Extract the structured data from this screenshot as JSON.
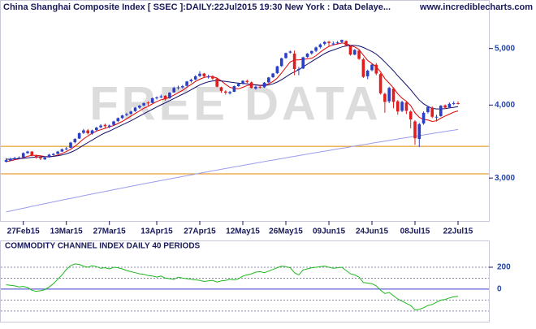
{
  "chart_data": [
    {
      "type": "candlestick",
      "title": "China Shanghai Composite Index [ SSEC ]:DAILY:22Jul2015 19:30 New York : Data Delaye...",
      "source": "www.incrediblecharts.com",
      "watermark": "FREE DATA",
      "log": true,
      "ylim": [
        2533,
        6053
      ],
      "yticks": [
        {
          "value": 5000,
          "label": "5,000"
        },
        {
          "value": 4000,
          "label": "4,000"
        },
        {
          "value": 3000,
          "label": "3,000"
        }
      ],
      "up_color": "#2a3fc8",
      "down_color": "#dd1f1f",
      "hlines": [
        3400,
        3050
      ],
      "hline_color": "#e08a00",
      "categories": [
        null,
        null,
        null,
        null,
        "27Feb15",
        null,
        null,
        null,
        null,
        null,
        null,
        null,
        null,
        null,
        "13Mar15",
        null,
        null,
        null,
        null,
        null,
        null,
        null,
        null,
        null,
        "27Mar15",
        null,
        null,
        null,
        null,
        null,
        null,
        null,
        null,
        null,
        null,
        "13Apr15",
        null,
        null,
        null,
        null,
        null,
        null,
        null,
        null,
        null,
        "27Apr15",
        null,
        null,
        null,
        null,
        null,
        null,
        null,
        null,
        null,
        "12May15",
        null,
        null,
        null,
        null,
        null,
        null,
        null,
        null,
        null,
        "26May15",
        null,
        null,
        null,
        null,
        null,
        null,
        null,
        null,
        null,
        "09Jun15",
        null,
        null,
        null,
        null,
        null,
        null,
        null,
        null,
        null,
        "24Jun15",
        null,
        null,
        null,
        null,
        null,
        null,
        null,
        null,
        null,
        "08Jul15",
        null,
        null,
        null,
        null,
        null,
        null,
        null,
        null,
        null,
        "22Jul15"
      ],
      "ohlc": [
        [
          3200,
          3245,
          3190,
          3220
        ],
        [
          3215,
          3250,
          3205,
          3235
        ],
        [
          3240,
          3262,
          3225,
          3245
        ],
        [
          3245,
          3268,
          3230,
          3250
        ],
        [
          3255,
          3320,
          3250,
          3310
        ],
        [
          3310,
          3340,
          3300,
          3330
        ],
        [
          3330,
          3335,
          3270,
          3280
        ],
        [
          3275,
          3290,
          3240,
          3250
        ],
        [
          3255,
          3265,
          3220,
          3240
        ],
        [
          3230,
          3260,
          3220,
          3250
        ],
        [
          3255,
          3300,
          3250,
          3290
        ],
        [
          3285,
          3310,
          3275,
          3300
        ],
        [
          3300,
          3340,
          3295,
          3330
        ],
        [
          3330,
          3370,
          3325,
          3360
        ],
        [
          3360,
          3390,
          3345,
          3372
        ],
        [
          3380,
          3460,
          3375,
          3450
        ],
        [
          3455,
          3510,
          3440,
          3500
        ],
        [
          3505,
          3590,
          3500,
          3580
        ],
        [
          3585,
          3640,
          3570,
          3620
        ],
        [
          3620,
          3640,
          3560,
          3580
        ],
        [
          3575,
          3630,
          3560,
          3620
        ],
        [
          3625,
          3670,
          3610,
          3660
        ],
        [
          3665,
          3710,
          3650,
          3690
        ],
        [
          3700,
          3720,
          3650,
          3680
        ],
        [
          3675,
          3705,
          3650,
          3691
        ],
        [
          3700,
          3760,
          3690,
          3750
        ],
        [
          3755,
          3810,
          3740,
          3800
        ],
        [
          3800,
          3850,
          3785,
          3840
        ],
        [
          3845,
          3880,
          3830,
          3860
        ],
        [
          3865,
          3910,
          3850,
          3900
        ],
        [
          3905,
          3970,
          3895,
          3960
        ],
        [
          3960,
          4000,
          3940,
          3990
        ],
        [
          3995,
          4040,
          3980,
          4030
        ],
        [
          4040,
          4060,
          3990,
          4030
        ],
        [
          4035,
          4120,
          4030,
          4110
        ],
        [
          4115,
          4140,
          4090,
          4121
        ],
        [
          4125,
          4170,
          4110,
          4140
        ],
        [
          4150,
          4160,
          4070,
          4100
        ],
        [
          4110,
          4210,
          4100,
          4200
        ],
        [
          4205,
          4300,
          4195,
          4280
        ],
        [
          4290,
          4320,
          4250,
          4290
        ],
        [
          4290,
          4330,
          4270,
          4310
        ],
        [
          4315,
          4400,
          4300,
          4390
        ],
        [
          4395,
          4440,
          4370,
          4420
        ],
        [
          4425,
          4500,
          4410,
          4480
        ],
        [
          4485,
          4572,
          4470,
          4527
        ],
        [
          4530,
          4540,
          4460,
          4480
        ],
        [
          4470,
          4510,
          4440,
          4476
        ],
        [
          4480,
          4500,
          4420,
          4440
        ],
        [
          4440,
          4450,
          4290,
          4300
        ],
        [
          4290,
          4300,
          4200,
          4230
        ],
        [
          4220,
          4240,
          4170,
          4200
        ],
        [
          4190,
          4230,
          4170,
          4210
        ],
        [
          4215,
          4320,
          4210,
          4310
        ],
        [
          4310,
          4370,
          4300,
          4350
        ],
        [
          4355,
          4410,
          4340,
          4401
        ],
        [
          4400,
          4420,
          4360,
          4380
        ],
        [
          4375,
          4390,
          4270,
          4280
        ],
        [
          4270,
          4320,
          4250,
          4300
        ],
        [
          4300,
          4320,
          4270,
          4290
        ],
        [
          4290,
          4380,
          4280,
          4370
        ],
        [
          4375,
          4470,
          4360,
          4460
        ],
        [
          4465,
          4540,
          4450,
          4530
        ],
        [
          4535,
          4670,
          4520,
          4660
        ],
        [
          4665,
          4820,
          4650,
          4810
        ],
        [
          4815,
          4920,
          4800,
          4910
        ],
        [
          4920,
          4960,
          4900,
          4940
        ],
        [
          4900,
          4960,
          4500,
          4610
        ],
        [
          4600,
          4650,
          4500,
          4610
        ],
        [
          4620,
          4840,
          4610,
          4830
        ],
        [
          4835,
          4910,
          4820,
          4900
        ],
        [
          4905,
          4960,
          4880,
          4950
        ],
        [
          4955,
          5040,
          4930,
          5020
        ],
        [
          5025,
          5100,
          5000,
          5080
        ],
        [
          5090,
          5150,
          5060,
          5130
        ],
        [
          5135,
          5150,
          5040,
          5110
        ],
        [
          5100,
          5140,
          5060,
          5100
        ],
        [
          5110,
          5150,
          5080,
          5120
        ],
        [
          5130,
          5178,
          5100,
          5170
        ],
        [
          5150,
          5160,
          5040,
          5060
        ],
        [
          5050,
          5070,
          4860,
          4880
        ],
        [
          4880,
          4990,
          4870,
          4970
        ],
        [
          4960,
          4980,
          4780,
          4800
        ],
        [
          4790,
          4820,
          4450,
          4470
        ],
        [
          4480,
          4600,
          4430,
          4580
        ],
        [
          4590,
          4700,
          4570,
          4690
        ],
        [
          4690,
          4720,
          4500,
          4530
        ],
        [
          4520,
          4540,
          4170,
          4190
        ],
        [
          4180,
          4200,
          3880,
          4050
        ],
        [
          4060,
          4300,
          4030,
          4280
        ],
        [
          4270,
          4290,
          3950,
          4050
        ],
        [
          4060,
          4080,
          3850,
          3900
        ],
        [
          3910,
          4070,
          3890,
          4050
        ],
        [
          4040,
          4060,
          3860,
          3910
        ],
        [
          3900,
          3920,
          3650,
          3780
        ],
        [
          3750,
          3770,
          3420,
          3510
        ],
        [
          3500,
          3730,
          3390,
          3710
        ],
        [
          3720,
          3900,
          3700,
          3880
        ],
        [
          3890,
          3990,
          3870,
          3970
        ],
        [
          3960,
          3980,
          3800,
          3820
        ],
        [
          3810,
          3850,
          3750,
          3820
        ],
        [
          3830,
          4000,
          3820,
          3990
        ],
        [
          3995,
          4010,
          3940,
          3960
        ],
        [
          3965,
          4040,
          3950,
          4020
        ],
        [
          4020,
          4060,
          4000,
          4030
        ],
        [
          4030,
          4060,
          4010,
          4026
        ]
      ],
      "series": [
        {
          "color": "#e00000",
          "values": [
            3200,
            3210,
            3225,
            3235,
            3250,
            3270,
            3280,
            3280,
            3275,
            3265,
            3260,
            3270,
            3285,
            3305,
            3330,
            3360,
            3400,
            3450,
            3500,
            3540,
            3580,
            3610,
            3630,
            3650,
            3670,
            3690,
            3720,
            3750,
            3790,
            3830,
            3870,
            3910,
            3950,
            3980,
            4020,
            4055,
            4085,
            4100,
            4125,
            4160,
            4200,
            4240,
            4290,
            4340,
            4390,
            4430,
            4460,
            4475,
            4475,
            4450,
            4400,
            4340,
            4290,
            4270,
            4265,
            4290,
            4320,
            4330,
            4335,
            4325,
            4330,
            4350,
            4390,
            4450,
            4540,
            4640,
            4740,
            4780,
            4780,
            4790,
            4800,
            4810,
            4860,
            4930,
            4990,
            5040,
            5070,
            5090,
            5110,
            5100,
            5060,
            5030,
            4980,
            4870,
            4770,
            4710,
            4650,
            4560,
            4440,
            4360,
            4280,
            4180,
            4110,
            4060,
            3990,
            3880,
            3810,
            3780,
            3770,
            3750,
            3760,
            3800,
            3830,
            3860,
            3890,
            3910
          ]
        },
        {
          "color": "#10106e",
          "values": [
            3230,
            3232,
            3235,
            3238,
            3242,
            3248,
            3255,
            3260,
            3262,
            3262,
            3265,
            3268,
            3275,
            3285,
            3300,
            3320,
            3345,
            3380,
            3415,
            3450,
            3485,
            3520,
            3555,
            3585,
            3610,
            3640,
            3670,
            3700,
            3730,
            3760,
            3795,
            3830,
            3865,
            3900,
            3935,
            3970,
            4005,
            4035,
            4070,
            4105,
            4140,
            4175,
            4210,
            4250,
            4290,
            4330,
            4360,
            4385,
            4400,
            4405,
            4400,
            4390,
            4380,
            4370,
            4360,
            4355,
            4350,
            4340,
            4330,
            4320,
            4320,
            4330,
            4350,
            4380,
            4420,
            4470,
            4520,
            4560,
            4600,
            4650,
            4700,
            4750,
            4800,
            4850,
            4900,
            4940,
            4970,
            5000,
            5030,
            5050,
            5060,
            5060,
            5050,
            5020,
            4980,
            4940,
            4890,
            4820,
            4740,
            4660,
            4580,
            4490,
            4410,
            4330,
            4250,
            4160,
            4080,
            4020,
            3980,
            3950,
            3940,
            3940,
            3945,
            3955,
            3965,
            3975
          ]
        },
        {
          "color": "#9c9cee",
          "values": [
            2625,
            2635,
            2644,
            2654,
            2663,
            2673,
            2683,
            2692,
            2702,
            2711,
            2721,
            2731,
            2740,
            2750,
            2759,
            2769,
            2779,
            2788,
            2798,
            2807,
            2817,
            2827,
            2836,
            2846,
            2855,
            2865,
            2875,
            2884,
            2894,
            2903,
            2913,
            2923,
            2932,
            2942,
            2951,
            2961,
            2971,
            2980,
            2990,
            2999,
            3009,
            3019,
            3028,
            3038,
            3047,
            3057,
            3067,
            3076,
            3086,
            3095,
            3105,
            3115,
            3124,
            3134,
            3143,
            3153,
            3163,
            3172,
            3182,
            3191,
            3201,
            3211,
            3220,
            3230,
            3239,
            3249,
            3259,
            3268,
            3278,
            3287,
            3297,
            3307,
            3316,
            3326,
            3335,
            3345,
            3355,
            3364,
            3374,
            3383,
            3393,
            3403,
            3412,
            3422,
            3431,
            3441,
            3451,
            3460,
            3470,
            3479,
            3489,
            3499,
            3508,
            3518,
            3527,
            3537,
            3547,
            3556,
            3566,
            3575,
            3585,
            3595,
            3604,
            3614,
            3623,
            3633
          ]
        }
      ]
    },
    {
      "type": "line",
      "title": "COMMODITY CHANNEL INDEX DAILY 40 PERIODS",
      "ylim": [
        -290,
        415
      ],
      "yticks": [
        200,
        0
      ],
      "levels": [
        200,
        100,
        -100,
        -200
      ],
      "color": "#1fb81f",
      "values": [
        40,
        35,
        30,
        20,
        25,
        15,
        -10,
        -20,
        -15,
        -5,
        20,
        50,
        90,
        130,
        180,
        215,
        230,
        225,
        210,
        200,
        215,
        205,
        190,
        195,
        185,
        200,
        195,
        185,
        170,
        160,
        150,
        140,
        135,
        125,
        120,
        110,
        120,
        100,
        95,
        90,
        110,
        100,
        95,
        90,
        85,
        80,
        70,
        75,
        80,
        65,
        75,
        80,
        90,
        85,
        95,
        120,
        130,
        140,
        155,
        160,
        150,
        165,
        180,
        195,
        210,
        205,
        195,
        150,
        130,
        175,
        185,
        195,
        200,
        205,
        210,
        200,
        190,
        195,
        200,
        170,
        140,
        130,
        110,
        60,
        55,
        50,
        30,
        -10,
        -40,
        -30,
        -60,
        -90,
        -110,
        -130,
        -150,
        -190,
        -185,
        -170,
        -150,
        -140,
        -120,
        -100,
        -95,
        -80,
        -70,
        -65
      ]
    }
  ]
}
